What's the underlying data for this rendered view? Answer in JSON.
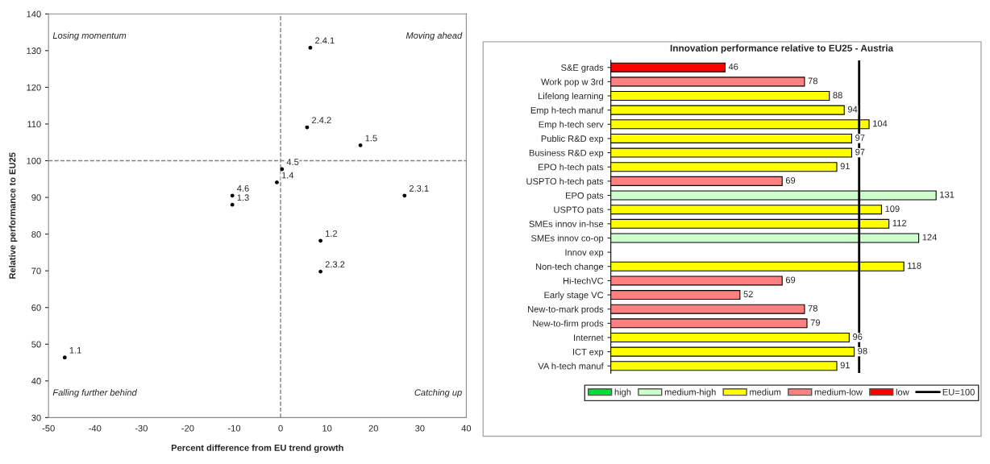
{
  "chart_data": [
    {
      "type": "scatter",
      "xlabel": "Percent difference from EU trend growth",
      "ylabel": "Relative performance to EU25",
      "x": [
        6.4,
        5.7,
        17.2,
        0.3,
        -0.8,
        -10.4,
        -10.4,
        26.7,
        8.6,
        8.6,
        -46.5
      ],
      "values": [
        130.8,
        109.1,
        104.2,
        97.7,
        94.1,
        90.5,
        88.0,
        90.5,
        78.2,
        69.8,
        46.4
      ],
      "marker": "circle",
      "color": "#000000",
      "xlim": [
        -50,
        40
      ],
      "xticks": [
        -50,
        -40,
        -30,
        -20,
        -10,
        0,
        10,
        20,
        30,
        40
      ],
      "ylim": [
        30,
        140
      ],
      "yticks": [
        30,
        40,
        50,
        60,
        70,
        80,
        90,
        100,
        110,
        120,
        130,
        140
      ],
      "ref_lines": [
        {
          "axis": "x",
          "value": 0,
          "line_style": "dashed",
          "color": "#808080"
        },
        {
          "axis": "y",
          "value": 100,
          "line_style": "dashed",
          "color": "#808080"
        }
      ],
      "annotations": [
        "Losing momentum",
        "Moving ahead",
        "Falling further behind",
        "Catching up",
        {
          "text": "2.4.1",
          "x": 6.4,
          "y": 130.8
        },
        {
          "text": "2.4.2",
          "x": 5.7,
          "y": 109.1
        },
        {
          "text": "1.5",
          "x": 17.2,
          "y": 104.2
        },
        {
          "text": "4.5",
          "x": 0.3,
          "y": 97.7
        },
        {
          "text": "1.4",
          "x": -0.8,
          "y": 94.1
        },
        {
          "text": "4.6",
          "x": -10.4,
          "y": 90.5
        },
        {
          "text": "1.3",
          "x": -10.4,
          "y": 88.0
        },
        {
          "text": "2.3.1",
          "x": 26.7,
          "y": 90.5
        },
        {
          "text": "1.2",
          "x": 8.6,
          "y": 78.2
        },
        {
          "text": "2.3.2",
          "x": 8.6,
          "y": 69.8
        },
        {
          "text": "1.1",
          "x": -46.5,
          "y": 46.4
        }
      ],
      "grid": false,
      "legend": false
    },
    {
      "type": "bar",
      "orientation": "horizontal",
      "stacked": true,
      "title": "Innovation performance relative to EU25 - Austria",
      "categories": [
        "S&E grads",
        "Work pop w 3rd",
        "Lifelong learning",
        "Emp h-tech manuf",
        "Emp h-tech serv",
        "Public R&D exp",
        "Business R&D exp",
        "EPO h-tech pats",
        "USPTO h-tech pats",
        "EPO pats",
        "USPTO pats",
        "SMEs innov in-hse",
        "SMEs innov co-op",
        "Innov exp",
        "Non-tech change",
        "Hi-techVC",
        "Early stage VC",
        "New-to-mark prods",
        "New-to-firm prods",
        "Internet",
        "ICT exp",
        "VA h-tech manuf"
      ],
      "series": [
        {
          "name": "high",
          "color": "#00dd33",
          "values": [
            null,
            null,
            null,
            null,
            null,
            null,
            null,
            null,
            null,
            null,
            null,
            null,
            null,
            null,
            null,
            null,
            null,
            null,
            null,
            null,
            null,
            null
          ]
        },
        {
          "name": "medium-high",
          "color": "#ccffcc",
          "values": [
            null,
            null,
            null,
            null,
            null,
            null,
            null,
            null,
            null,
            131,
            null,
            null,
            124,
            null,
            null,
            null,
            null,
            null,
            null,
            null,
            null,
            null
          ]
        },
        {
          "name": "medium",
          "color": "#ffff00",
          "values": [
            null,
            null,
            88,
            94,
            104,
            97,
            97,
            91,
            null,
            null,
            109,
            112,
            null,
            null,
            118,
            null,
            null,
            null,
            null,
            96,
            98,
            91
          ]
        },
        {
          "name": "medium-low",
          "color": "#ff8080",
          "values": [
            null,
            78,
            null,
            null,
            null,
            null,
            null,
            null,
            69,
            null,
            null,
            null,
            null,
            null,
            null,
            69,
            52,
            78,
            79,
            null,
            null,
            null
          ]
        },
        {
          "name": "low",
          "color": "#ff0000",
          "values": [
            46,
            null,
            null,
            null,
            null,
            null,
            null,
            null,
            null,
            null,
            null,
            null,
            null,
            null,
            null,
            null,
            null,
            null,
            null,
            null,
            null,
            null
          ]
        }
      ],
      "ref_lines": [
        {
          "axis": "x",
          "value": 100,
          "label": "EU=100",
          "color": "#000000",
          "line_style": "solid"
        }
      ],
      "tick_labels": "y",
      "data_labels": true,
      "grid": false,
      "legend": "bottom"
    }
  ]
}
